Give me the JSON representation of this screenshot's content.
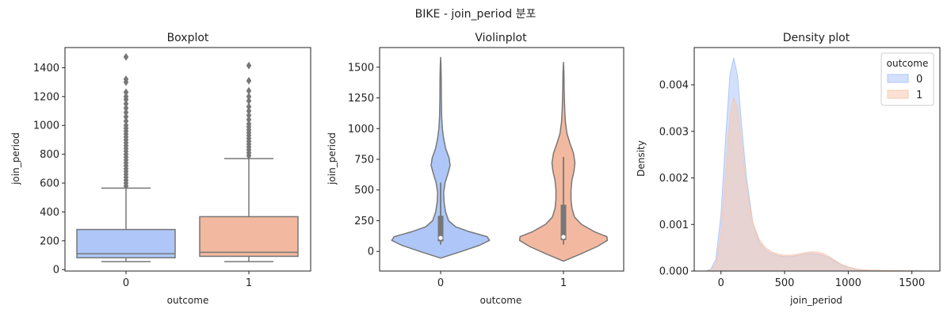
{
  "figure": {
    "suptitle": "BIKE - join_period 분포"
  },
  "colors": {
    "outcome0": "#aec7f8",
    "outcome1": "#f3b9a0",
    "line": "#777777",
    "density0": "#aec7f8",
    "density1": "#f7c9b1"
  },
  "chart_data": [
    {
      "type": "box",
      "title": "Boxplot",
      "xlabel": "outcome",
      "ylabel": "join_period",
      "categories": [
        "0",
        "1"
      ],
      "ylim": [
        -10,
        1540
      ],
      "yticks": [
        0,
        200,
        400,
        600,
        800,
        1000,
        1200,
        1400
      ],
      "boxes": [
        {
          "name": "0",
          "min": 55,
          "q1": 82,
          "median": 110,
          "q3": 278,
          "whisker_high": 565,
          "outliers": [
            580,
            600,
            620,
            640,
            660,
            680,
            700,
            720,
            740,
            760,
            780,
            800,
            820,
            840,
            860,
            880,
            900,
            920,
            940,
            960,
            980,
            1000,
            1030,
            1060,
            1090,
            1120,
            1150,
            1180,
            1200,
            1230,
            1300,
            1320,
            1475
          ]
        },
        {
          "name": "1",
          "min": 55,
          "q1": 92,
          "median": 120,
          "q3": 367,
          "whisker_high": 770,
          "outliers": [
            790,
            810,
            830,
            850,
            870,
            890,
            910,
            930,
            950,
            970,
            990,
            1010,
            1040,
            1070,
            1100,
            1130,
            1170,
            1200,
            1240,
            1310,
            1415
          ]
        }
      ]
    },
    {
      "type": "violin",
      "title": "Violinplot",
      "xlabel": "outcome",
      "ylabel": "join_period",
      "categories": [
        "0",
        "1"
      ],
      "ylim": [
        -160,
        1660
      ],
      "yticks": [
        0,
        250,
        500,
        750,
        1000,
        1250,
        1500
      ],
      "violins": [
        {
          "name": "0",
          "range": [
            -55,
            1580
          ],
          "q1": 82,
          "median": 110,
          "q3": 290,
          "whisker_low": 55,
          "whisker_high": 560,
          "profile": [
            [
              -55,
              0.0
            ],
            [
              0,
              0.42
            ],
            [
              50,
              0.78
            ],
            [
              90,
              0.98
            ],
            [
              120,
              0.93
            ],
            [
              160,
              0.58
            ],
            [
              200,
              0.3
            ],
            [
              250,
              0.16
            ],
            [
              320,
              0.1
            ],
            [
              400,
              0.07
            ],
            [
              480,
              0.06
            ],
            [
              560,
              0.09
            ],
            [
              640,
              0.15
            ],
            [
              700,
              0.19
            ],
            [
              760,
              0.17
            ],
            [
              840,
              0.1
            ],
            [
              920,
              0.06
            ],
            [
              1000,
              0.035
            ],
            [
              1100,
              0.02
            ],
            [
              1250,
              0.015
            ],
            [
              1400,
              0.012
            ],
            [
              1500,
              0.008
            ],
            [
              1580,
              0.0
            ]
          ]
        },
        {
          "name": "1",
          "range": [
            -80,
            1540
          ],
          "q1": 92,
          "median": 118,
          "q3": 380,
          "whisker_low": 55,
          "whisker_high": 770,
          "profile": [
            [
              -80,
              0.0
            ],
            [
              -20,
              0.35
            ],
            [
              40,
              0.68
            ],
            [
              90,
              0.88
            ],
            [
              120,
              0.87
            ],
            [
              160,
              0.62
            ],
            [
              220,
              0.36
            ],
            [
              280,
              0.22
            ],
            [
              350,
              0.17
            ],
            [
              420,
              0.15
            ],
            [
              500,
              0.15
            ],
            [
              580,
              0.17
            ],
            [
              650,
              0.21
            ],
            [
              720,
              0.23
            ],
            [
              800,
              0.2
            ],
            [
              880,
              0.13
            ],
            [
              960,
              0.07
            ],
            [
              1050,
              0.04
            ],
            [
              1150,
              0.025
            ],
            [
              1300,
              0.015
            ],
            [
              1450,
              0.01
            ],
            [
              1540,
              0.0
            ]
          ]
        }
      ]
    },
    {
      "type": "area",
      "title": "Density plot",
      "xlabel": "join_period",
      "ylabel": "Density",
      "xlim": [
        -210,
        1720
      ],
      "ylim": [
        0,
        0.0048
      ],
      "xticks": [
        0,
        500,
        1000,
        1500
      ],
      "yticks": [
        0.0,
        0.001,
        0.002,
        0.003,
        0.004
      ],
      "ytick_labels": [
        "0.000",
        "0.001",
        "0.002",
        "0.003",
        "0.004"
      ],
      "legend": {
        "title": "outcome",
        "placement": "top-right"
      },
      "series": [
        {
          "name": "0",
          "x": [
            -120,
            -80,
            -40,
            0,
            40,
            70,
            100,
            130,
            160,
            200,
            250,
            300,
            350,
            400,
            450,
            500,
            550,
            600,
            650,
            700,
            750,
            800,
            850,
            900,
            950,
            1000,
            1050,
            1100,
            1150,
            1200,
            1300,
            1400,
            1500,
            1600
          ],
          "y": [
            0.0,
            4e-05,
            0.00025,
            0.0012,
            0.003,
            0.0042,
            0.00458,
            0.0042,
            0.0032,
            0.002,
            0.00105,
            0.00062,
            0.00045,
            0.00037,
            0.00033,
            0.00031,
            0.00031,
            0.00033,
            0.00036,
            0.00038,
            0.00037,
            0.00034,
            0.00028,
            0.0002,
            0.00013,
            8e-05,
            5e-05,
            3e-05,
            2e-05,
            1.5e-05,
            1e-05,
            6e-06,
            3e-06,
            0.0
          ]
        },
        {
          "name": "1",
          "x": [
            -120,
            -80,
            -40,
            0,
            40,
            70,
            100,
            130,
            160,
            200,
            250,
            300,
            350,
            400,
            450,
            500,
            550,
            600,
            650,
            700,
            750,
            800,
            850,
            900,
            950,
            1000,
            1050,
            1100,
            1150,
            1200,
            1300,
            1400,
            1500,
            1600
          ],
          "y": [
            0.0,
            2e-05,
            0.00015,
            0.0008,
            0.0022,
            0.0033,
            0.00372,
            0.0035,
            0.0028,
            0.0018,
            0.00105,
            0.00068,
            0.0005,
            0.00041,
            0.00036,
            0.00034,
            0.00034,
            0.00036,
            0.00039,
            0.00041,
            0.00041,
            0.00038,
            0.00031,
            0.00022,
            0.00014,
            9e-05,
            5e-05,
            3e-05,
            2e-05,
            1.5e-05,
            1e-05,
            6e-06,
            3e-06,
            0.0
          ]
        }
      ]
    }
  ]
}
